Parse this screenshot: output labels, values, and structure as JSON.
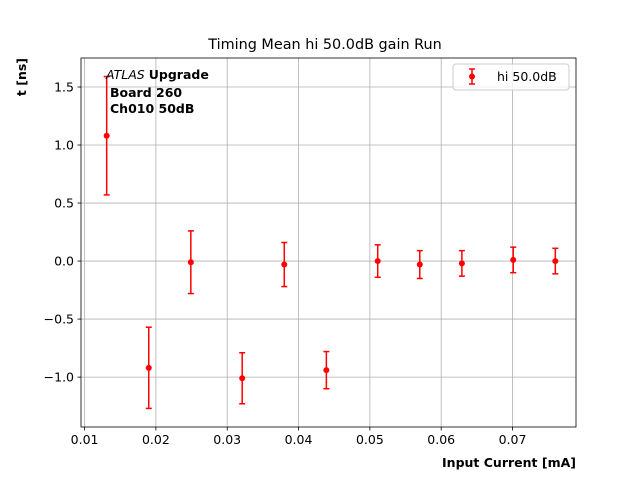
{
  "chart_data": {
    "type": "scatter",
    "title": "Timing Mean hi 50.0dB gain Run",
    "xlabel": "Input Current [mA]",
    "ylabel": "t [ns]",
    "xlim": [
      0.0095,
      0.0789
    ],
    "ylim": [
      -1.43,
      1.75
    ],
    "xticks": [
      0.01,
      0.02,
      0.03,
      0.04,
      0.05,
      0.06,
      0.07
    ],
    "xtick_labels": [
      "0.01",
      "0.02",
      "0.03",
      "0.04",
      "0.05",
      "0.06",
      "0.07"
    ],
    "yticks": [
      -1.0,
      -0.5,
      0.0,
      0.5,
      1.0,
      1.5
    ],
    "ytick_labels": [
      "−1.0",
      "−0.5",
      "0.0",
      "0.5",
      "1.0",
      "1.5"
    ],
    "grid": true,
    "legend_position": "top-right",
    "annotation": {
      "atlas": "ATLAS",
      "upgrade": "Upgrade",
      "line2": "Board 260",
      "line3": "Ch010 50dB"
    },
    "series": [
      {
        "name": "hi 50.0dB",
        "color": "#ff0000",
        "marker": "circle",
        "points": [
          {
            "x": 0.0131,
            "y": 1.08,
            "err": 0.51
          },
          {
            "x": 0.019,
            "y": -0.92,
            "err": 0.35
          },
          {
            "x": 0.0249,
            "y": -0.01,
            "err": 0.27
          },
          {
            "x": 0.0321,
            "y": -1.01,
            "err": 0.22
          },
          {
            "x": 0.038,
            "y": -0.03,
            "err": 0.19
          },
          {
            "x": 0.0439,
            "y": -0.94,
            "err": 0.16
          },
          {
            "x": 0.0511,
            "y": 0.0,
            "err": 0.14
          },
          {
            "x": 0.057,
            "y": -0.03,
            "err": 0.12
          },
          {
            "x": 0.0629,
            "y": -0.02,
            "err": 0.11
          },
          {
            "x": 0.0701,
            "y": 0.01,
            "err": 0.11
          },
          {
            "x": 0.076,
            "y": 0.0,
            "err": 0.11
          }
        ]
      }
    ]
  }
}
